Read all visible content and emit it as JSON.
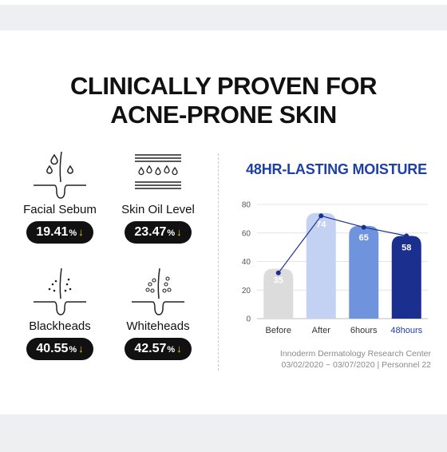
{
  "headline": {
    "line1": "CLINICALLY PROVEN FOR",
    "line2": "ACNE-PRONE SKIN"
  },
  "stats": {
    "sebum": {
      "label": "Facial Sebum",
      "value": "19.41",
      "unit": "%",
      "arrow": "↓",
      "icon": "hair-follicle-oil-drops-icon"
    },
    "oil": {
      "label": "Skin Oil Level",
      "value": "23.47",
      "unit": "%",
      "arrow": "↓",
      "icon": "skin-layers-oil-drops-icon"
    },
    "blackheads": {
      "label": "Blackheads",
      "value": "40.55",
      "unit": "%",
      "arrow": "↓",
      "icon": "blackheads-pores-icon"
    },
    "whiteheads": {
      "label": "Whiteheads",
      "value": "42.57",
      "unit": "%",
      "arrow": "↓",
      "icon": "whiteheads-pores-icon"
    }
  },
  "chart_title": "48HR-LASTING MOISTURE",
  "chart_data": {
    "type": "bar",
    "title": "48HR-LASTING MOISTURE",
    "categories": [
      "Before",
      "After",
      "6hours",
      "48hours"
    ],
    "values": [
      35,
      74,
      65,
      58
    ],
    "line_values": [
      32,
      72,
      64,
      58
    ],
    "ylim": [
      0,
      80
    ],
    "yticks": [
      0,
      20,
      40,
      60,
      80
    ],
    "grid": true,
    "bar_colors": [
      "#dcdcdc",
      "#c3d2f2",
      "#6f93dd",
      "#1b2f8f"
    ],
    "highlight_category_color": "#1d3fa6",
    "line_color": "#1b2f8f"
  },
  "footnote": {
    "line1": "Innoderm Dermatology Research Center",
    "line2": "03/02/2020 ~ 03/07/2020 | Personnel 22"
  },
  "colors": {
    "accent": "#1d3fa6",
    "pill_bg": "#111111",
    "arrow": "#f2c21a",
    "band": "#eeeff1"
  }
}
